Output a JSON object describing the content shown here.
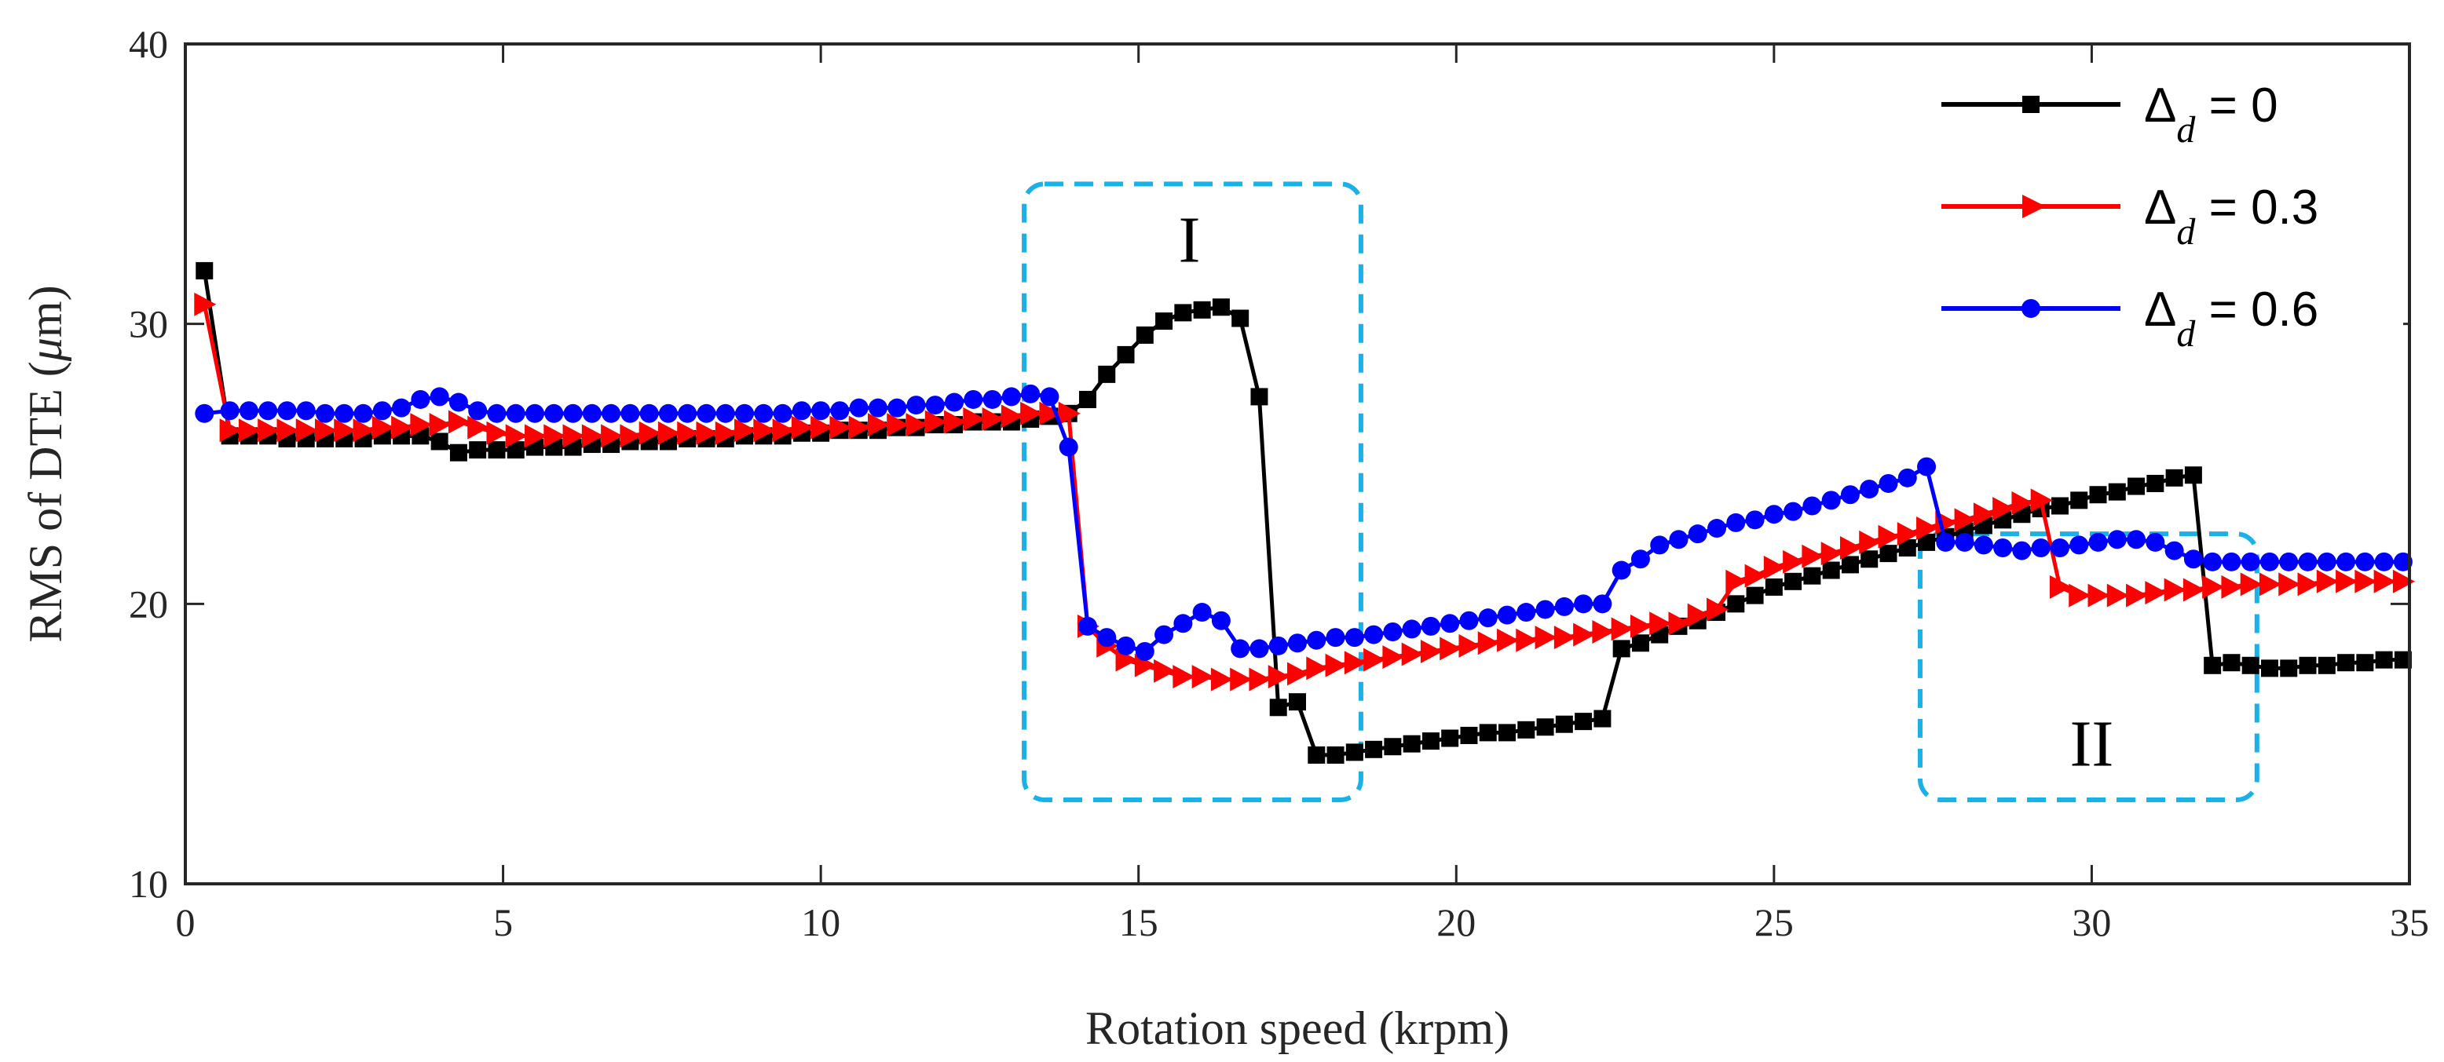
{
  "chart_data": {
    "type": "line",
    "title": "",
    "xlabel": "Rotation speed (krpm)",
    "ylabel_prefix": "RMS of DTE (",
    "ylabel_unit_symbol": "μ",
    "ylabel_suffix": "m)",
    "xlim": [
      0,
      35
    ],
    "ylim": [
      10,
      40
    ],
    "xticks": [
      0,
      5,
      10,
      15,
      20,
      25,
      30,
      35
    ],
    "yticks": [
      10,
      20,
      30,
      40
    ],
    "grid": false,
    "legend_position": "top-right",
    "series": [
      {
        "name": "Δd = 0",
        "legend_symbol": "Δ",
        "legend_sub": "d",
        "legend_rest": " = 0",
        "color": "#000000",
        "marker": "square",
        "x": [
          0.3,
          0.7,
          1.0,
          1.3,
          1.6,
          1.9,
          2.2,
          2.5,
          2.8,
          3.1,
          3.4,
          3.7,
          4.0,
          4.3,
          4.6,
          4.9,
          5.2,
          5.5,
          5.8,
          6.1,
          6.4,
          6.7,
          7.0,
          7.3,
          7.6,
          7.9,
          8.2,
          8.5,
          8.8,
          9.1,
          9.4,
          9.7,
          10.0,
          10.3,
          10.6,
          10.9,
          11.2,
          11.5,
          11.8,
          12.1,
          12.4,
          12.7,
          13.0,
          13.3,
          13.6,
          13.9,
          14.2,
          14.5,
          14.8,
          15.1,
          15.4,
          15.7,
          16.0,
          16.3,
          16.6,
          16.9,
          17.2,
          17.5,
          17.8,
          18.1,
          18.4,
          18.7,
          19.0,
          19.3,
          19.6,
          19.9,
          20.2,
          20.5,
          20.8,
          21.1,
          21.4,
          21.7,
          22.0,
          22.3,
          22.6,
          22.9,
          23.2,
          23.5,
          23.8,
          24.1,
          24.4,
          24.7,
          25.0,
          25.3,
          25.6,
          25.9,
          26.2,
          26.5,
          26.8,
          27.1,
          27.4,
          27.7,
          28.0,
          28.3,
          28.6,
          28.9,
          29.2,
          29.5,
          29.8,
          30.1,
          30.4,
          30.7,
          31.0,
          31.3,
          31.6,
          31.9,
          32.2,
          32.5,
          32.8,
          33.1,
          33.4,
          33.7,
          34.0,
          34.3,
          34.6,
          34.9
        ],
        "y": [
          31.9,
          26.0,
          26.0,
          26.0,
          25.9,
          25.9,
          25.9,
          25.9,
          25.9,
          26.0,
          26.0,
          26.0,
          25.8,
          25.4,
          25.5,
          25.5,
          25.5,
          25.6,
          25.6,
          25.6,
          25.7,
          25.7,
          25.8,
          25.8,
          25.8,
          25.9,
          25.9,
          25.9,
          26.0,
          26.0,
          26.0,
          26.1,
          26.1,
          26.2,
          26.2,
          26.2,
          26.3,
          26.3,
          26.4,
          26.4,
          26.5,
          26.5,
          26.5,
          26.6,
          26.7,
          26.8,
          27.3,
          28.2,
          28.9,
          29.6,
          30.1,
          30.4,
          30.5,
          30.6,
          30.2,
          27.4,
          16.3,
          16.5,
          14.6,
          14.6,
          14.7,
          14.8,
          14.9,
          15.0,
          15.1,
          15.2,
          15.3,
          15.4,
          15.4,
          15.5,
          15.6,
          15.7,
          15.8,
          15.9,
          18.4,
          18.6,
          18.9,
          19.2,
          19.4,
          19.7,
          20.0,
          20.3,
          20.6,
          20.8,
          21.0,
          21.2,
          21.4,
          21.6,
          21.8,
          22.0,
          22.2,
          22.4,
          22.6,
          22.8,
          23.0,
          23.2,
          23.4,
          23.5,
          23.7,
          23.9,
          24.0,
          24.2,
          24.3,
          24.5,
          24.6,
          17.8,
          17.9,
          17.8,
          17.7,
          17.7,
          17.8,
          17.8,
          17.9,
          17.9,
          18.0,
          18.0
        ],
        "n_raw": 114
      },
      {
        "name": "Δd = 0.3",
        "legend_symbol": "Δ",
        "legend_sub": "d",
        "legend_rest": " = 0.3",
        "color": "#ff0000",
        "marker": "triangle-right",
        "x": [
          0.3,
          0.7,
          1.0,
          1.3,
          1.6,
          1.9,
          2.2,
          2.5,
          2.8,
          3.1,
          3.4,
          3.7,
          4.0,
          4.3,
          4.6,
          4.9,
          5.2,
          5.5,
          5.8,
          6.1,
          6.4,
          6.7,
          7.0,
          7.3,
          7.6,
          7.9,
          8.2,
          8.5,
          8.8,
          9.1,
          9.4,
          9.7,
          10.0,
          10.3,
          10.6,
          10.9,
          11.2,
          11.5,
          11.8,
          12.1,
          12.4,
          12.7,
          13.0,
          13.3,
          13.6,
          13.9,
          14.2,
          14.5,
          14.8,
          15.1,
          15.4,
          15.7,
          16.0,
          16.3,
          16.6,
          16.9,
          17.2,
          17.5,
          17.8,
          18.1,
          18.4,
          18.7,
          19.0,
          19.3,
          19.6,
          19.9,
          20.2,
          20.5,
          20.8,
          21.1,
          21.4,
          21.7,
          22.0,
          22.3,
          22.6,
          22.9,
          23.2,
          23.5,
          23.8,
          24.1,
          24.4,
          24.7,
          25.0,
          25.3,
          25.6,
          25.9,
          26.2,
          26.5,
          26.8,
          27.1,
          27.4,
          27.7,
          28.0,
          28.3,
          28.6,
          28.9,
          29.2,
          29.5,
          29.8,
          30.1,
          30.4,
          30.7,
          31.0,
          31.3,
          31.6,
          31.9,
          32.2,
          32.5,
          32.8,
          33.1,
          33.4,
          33.7,
          34.0,
          34.3,
          34.6,
          34.9
        ],
        "y": [
          30.7,
          26.2,
          26.2,
          26.2,
          26.2,
          26.2,
          26.2,
          26.2,
          26.2,
          26.3,
          26.3,
          26.4,
          26.4,
          26.5,
          26.3,
          26.1,
          26.0,
          26.0,
          26.0,
          26.0,
          26.0,
          26.0,
          26.0,
          26.1,
          26.1,
          26.1,
          26.1,
          26.1,
          26.2,
          26.2,
          26.2,
          26.3,
          26.3,
          26.3,
          26.3,
          26.4,
          26.4,
          26.4,
          26.5,
          26.5,
          26.6,
          26.6,
          26.7,
          26.8,
          26.8,
          26.8,
          19.2,
          18.5,
          18.0,
          17.8,
          17.6,
          17.4,
          17.4,
          17.3,
          17.3,
          17.3,
          17.4,
          17.5,
          17.7,
          17.8,
          17.9,
          18.0,
          18.1,
          18.2,
          18.3,
          18.4,
          18.5,
          18.6,
          18.7,
          18.7,
          18.8,
          18.8,
          18.9,
          19.0,
          19.1,
          19.2,
          19.3,
          19.3,
          19.6,
          19.8,
          20.8,
          21.0,
          21.3,
          21.5,
          21.7,
          21.8,
          22.0,
          22.2,
          22.4,
          22.5,
          22.7,
          22.9,
          23.0,
          23.2,
          23.4,
          23.6,
          23.7,
          20.6,
          20.3,
          20.3,
          20.3,
          20.3,
          20.4,
          20.5,
          20.5,
          20.6,
          20.6,
          20.7,
          20.7,
          20.7,
          20.7,
          20.8,
          20.8,
          20.8,
          20.8,
          20.8
        ],
        "n_raw": 114
      },
      {
        "name": "Δd = 0.6",
        "legend_symbol": "Δ",
        "legend_sub": "d",
        "legend_rest": " = 0.6",
        "color": "#0000ff",
        "marker": "circle",
        "x": [
          0.3,
          0.7,
          1.0,
          1.3,
          1.6,
          1.9,
          2.2,
          2.5,
          2.8,
          3.1,
          3.4,
          3.7,
          4.0,
          4.3,
          4.6,
          4.9,
          5.2,
          5.5,
          5.8,
          6.1,
          6.4,
          6.7,
          7.0,
          7.3,
          7.6,
          7.9,
          8.2,
          8.5,
          8.8,
          9.1,
          9.4,
          9.7,
          10.0,
          10.3,
          10.6,
          10.9,
          11.2,
          11.5,
          11.8,
          12.1,
          12.4,
          12.7,
          13.0,
          13.3,
          13.6,
          13.9,
          14.2,
          14.5,
          14.8,
          15.1,
          15.4,
          15.7,
          16.0,
          16.3,
          16.6,
          16.9,
          17.2,
          17.5,
          17.8,
          18.1,
          18.4,
          18.7,
          19.0,
          19.3,
          19.6,
          19.9,
          20.2,
          20.5,
          20.8,
          21.1,
          21.4,
          21.7,
          22.0,
          22.3,
          22.6,
          22.9,
          23.2,
          23.5,
          23.8,
          24.1,
          24.4,
          24.7,
          25.0,
          25.3,
          25.6,
          25.9,
          26.2,
          26.5,
          26.8,
          27.1,
          27.4,
          27.7,
          28.0,
          28.3,
          28.6,
          28.9,
          29.2,
          29.5,
          29.8,
          30.1,
          30.4,
          30.7,
          31.0,
          31.3,
          31.6,
          31.9,
          32.2,
          32.5,
          32.8,
          33.1,
          33.4,
          33.7,
          34.0,
          34.3,
          34.6,
          34.9
        ],
        "y": [
          26.8,
          26.9,
          26.9,
          26.9,
          26.9,
          26.9,
          26.8,
          26.8,
          26.8,
          26.9,
          27.0,
          27.3,
          27.4,
          27.2,
          26.9,
          26.8,
          26.8,
          26.8,
          26.8,
          26.8,
          26.8,
          26.8,
          26.8,
          26.8,
          26.8,
          26.8,
          26.8,
          26.8,
          26.8,
          26.8,
          26.8,
          26.9,
          26.9,
          26.9,
          27.0,
          27.0,
          27.0,
          27.1,
          27.1,
          27.2,
          27.3,
          27.3,
          27.4,
          27.5,
          27.4,
          25.6,
          19.2,
          18.8,
          18.5,
          18.3,
          18.9,
          19.3,
          19.7,
          19.4,
          18.4,
          18.4,
          18.5,
          18.6,
          18.7,
          18.8,
          18.8,
          18.9,
          19.0,
          19.1,
          19.2,
          19.3,
          19.4,
          19.5,
          19.6,
          19.7,
          19.8,
          19.9,
          20.0,
          20.0,
          21.2,
          21.6,
          22.1,
          22.3,
          22.5,
          22.7,
          22.9,
          23.0,
          23.2,
          23.3,
          23.5,
          23.7,
          23.9,
          24.1,
          24.3,
          24.5,
          24.9,
          22.2,
          22.2,
          22.1,
          22.0,
          21.9,
          22.0,
          22.0,
          22.1,
          22.2,
          22.3,
          22.3,
          22.2,
          21.9,
          21.6,
          21.5,
          21.5,
          21.5,
          21.5,
          21.5,
          21.5,
          21.5,
          21.5,
          21.5,
          21.5,
          21.5
        ],
        "n_raw": 114
      }
    ],
    "annotations": [
      {
        "label": "I",
        "box": {
          "x0": 13.2,
          "x1": 18.5,
          "y0": 13.0,
          "y1": 35.0
        },
        "text_at": {
          "x": 15.8,
          "y": 33.0
        },
        "color": "#1ab0e8"
      },
      {
        "label": "II",
        "box": {
          "x0": 27.3,
          "x1": 32.6,
          "y0": 13.0,
          "y1": 22.5
        },
        "text_at": {
          "x": 30.0,
          "y": 15.0
        },
        "color": "#1ab0e8"
      }
    ]
  }
}
